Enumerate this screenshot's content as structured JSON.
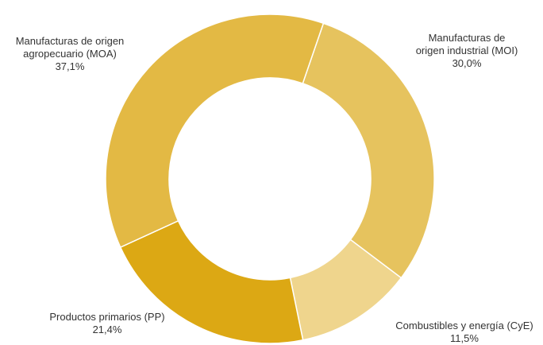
{
  "chart_data": {
    "type": "donut",
    "categories": [
      "Manufacturas de\norigen industrial (MOI)",
      "Combustibles y energía (CyE)",
      "Productos primarios (PP)",
      "Manufacturas de origen\nagropecuario (MOA)"
    ],
    "values": [
      30.0,
      11.5,
      21.4,
      37.1
    ],
    "value_labels": [
      "30,0%",
      "11,5%",
      "21,4%",
      "37,1%"
    ],
    "colors": [
      "#e6c35e",
      "#efd58d",
      "#dca814",
      "#e3b944"
    ]
  }
}
